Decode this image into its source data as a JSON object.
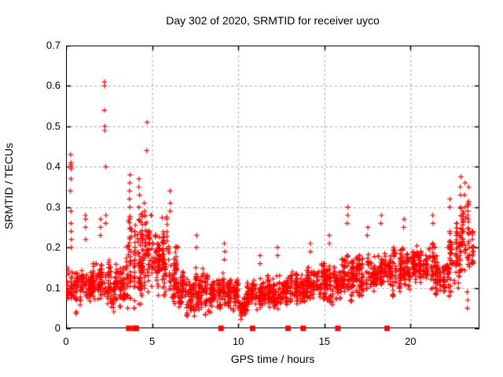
{
  "chart_data": {
    "type": "scatter",
    "title": "Day 302 of 2020, SRMTID for receiver uyco",
    "xlabel": "GPS time / hours",
    "ylabel": "SRMTID / TECUs",
    "xlim": [
      0,
      24
    ],
    "ylim": [
      0,
      0.7
    ],
    "xticks": [
      0,
      5,
      10,
      15,
      20
    ],
    "yticks": [
      0,
      0.1,
      0.2,
      0.3,
      0.4,
      0.5,
      0.6,
      0.7
    ],
    "xtick_labels": [
      "0",
      "5",
      "10",
      "15",
      "20"
    ],
    "ytick_labels": [
      "0",
      "0.1",
      "0.2",
      "0.3",
      "0.4",
      "0.5",
      "0.6",
      "0.7"
    ],
    "grid": true,
    "grid_style": "dashed",
    "grid_color": "#a8a8a8",
    "marker": {
      "shape": "plus",
      "color": "#ff0000",
      "size": 7
    },
    "baseline_square_marker": {
      "shape": "filled-square",
      "color": "#ff0000",
      "size": 7,
      "y": 0
    },
    "baseline_squares_x": [
      3.64,
      3.97,
      4.08,
      9.0,
      10.83,
      12.89,
      13.77,
      15.78,
      18.64
    ],
    "seed": 20201302,
    "density_bins_note": "each bin = [hour_start, hour_end, n_points, y_low, y_high] of the dense measurement band",
    "density_bins": [
      [
        0.0,
        0.5,
        42,
        0.06,
        0.17
      ],
      [
        0.5,
        1.0,
        50,
        0.05,
        0.15
      ],
      [
        1.0,
        1.5,
        55,
        0.06,
        0.16
      ],
      [
        1.5,
        2.0,
        50,
        0.06,
        0.16
      ],
      [
        2.0,
        2.5,
        55,
        0.06,
        0.18
      ],
      [
        2.5,
        3.0,
        50,
        0.05,
        0.16
      ],
      [
        3.0,
        3.5,
        55,
        0.06,
        0.16
      ],
      [
        3.5,
        4.0,
        70,
        0.07,
        0.28
      ],
      [
        4.0,
        4.5,
        75,
        0.08,
        0.3
      ],
      [
        4.5,
        5.0,
        60,
        0.07,
        0.28
      ],
      [
        5.0,
        5.5,
        60,
        0.09,
        0.24
      ],
      [
        5.5,
        6.0,
        65,
        0.1,
        0.28
      ],
      [
        6.0,
        6.5,
        60,
        0.08,
        0.25
      ],
      [
        6.5,
        7.0,
        55,
        0.05,
        0.14
      ],
      [
        7.0,
        7.5,
        60,
        0.04,
        0.13
      ],
      [
        7.5,
        8.0,
        60,
        0.05,
        0.15
      ],
      [
        8.0,
        8.5,
        55,
        0.04,
        0.13
      ],
      [
        8.5,
        9.0,
        55,
        0.05,
        0.14
      ],
      [
        9.0,
        9.5,
        55,
        0.05,
        0.16
      ],
      [
        9.5,
        10.0,
        55,
        0.04,
        0.12
      ],
      [
        10.0,
        10.5,
        60,
        0.03,
        0.1
      ],
      [
        10.5,
        11.0,
        55,
        0.04,
        0.12
      ],
      [
        11.0,
        11.5,
        55,
        0.05,
        0.13
      ],
      [
        11.5,
        12.0,
        55,
        0.05,
        0.13
      ],
      [
        12.0,
        12.5,
        55,
        0.05,
        0.13
      ],
      [
        12.5,
        13.0,
        55,
        0.06,
        0.14
      ],
      [
        13.0,
        13.5,
        55,
        0.06,
        0.14
      ],
      [
        13.5,
        14.0,
        55,
        0.06,
        0.15
      ],
      [
        14.0,
        14.5,
        55,
        0.07,
        0.16
      ],
      [
        14.5,
        15.0,
        55,
        0.07,
        0.16
      ],
      [
        15.0,
        15.5,
        55,
        0.07,
        0.17
      ],
      [
        15.5,
        16.0,
        55,
        0.08,
        0.17
      ],
      [
        16.0,
        16.5,
        55,
        0.08,
        0.18
      ],
      [
        16.5,
        17.0,
        55,
        0.08,
        0.18
      ],
      [
        17.0,
        17.5,
        55,
        0.08,
        0.18
      ],
      [
        17.5,
        18.0,
        55,
        0.09,
        0.19
      ],
      [
        18.0,
        18.5,
        55,
        0.08,
        0.18
      ],
      [
        18.5,
        19.0,
        55,
        0.09,
        0.19
      ],
      [
        19.0,
        19.5,
        55,
        0.1,
        0.2
      ],
      [
        19.5,
        20.0,
        60,
        0.1,
        0.21
      ],
      [
        20.0,
        20.5,
        60,
        0.12,
        0.21
      ],
      [
        20.5,
        21.0,
        60,
        0.11,
        0.21
      ],
      [
        21.0,
        21.5,
        55,
        0.09,
        0.21
      ],
      [
        21.5,
        22.0,
        50,
        0.08,
        0.2
      ],
      [
        22.0,
        22.5,
        55,
        0.1,
        0.24
      ],
      [
        22.5,
        23.0,
        60,
        0.12,
        0.3
      ],
      [
        23.0,
        23.5,
        50,
        0.12,
        0.32
      ],
      [
        23.5,
        23.8,
        20,
        0.14,
        0.24
      ]
    ],
    "spike_columns_note": "distinct high/low outlier columns read from the plot: {x hour, y values}",
    "spike_columns": [
      {
        "x": 0.27,
        "ys": [
          0.34,
          0.37,
          0.395,
          0.4,
          0.405,
          0.41,
          0.43
        ]
      },
      {
        "x": 0.3,
        "ys": [
          0.2,
          0.22,
          0.24,
          0.26,
          0.29
        ]
      },
      {
        "x": 1.15,
        "ys": [
          0.22,
          0.25,
          0.27,
          0.28
        ]
      },
      {
        "x": 2.0,
        "ys": [
          0.23,
          0.25,
          0.27
        ]
      },
      {
        "x": 2.25,
        "ys": [
          0.49,
          0.5,
          0.54,
          0.6,
          0.61
        ]
      },
      {
        "x": 2.3,
        "ys": [
          0.26,
          0.28,
          0.4
        ]
      },
      {
        "x": 3.7,
        "ys": [
          0.3,
          0.32,
          0.34,
          0.36,
          0.38
        ]
      },
      {
        "x": 4.25,
        "ys": [
          0.3,
          0.33,
          0.35,
          0.37
        ]
      },
      {
        "x": 4.55,
        "ys": [
          0.29,
          0.31
        ]
      },
      {
        "x": 4.7,
        "ys": [
          0.44,
          0.51
        ]
      },
      {
        "x": 6.05,
        "ys": [
          0.29,
          0.31,
          0.34
        ]
      },
      {
        "x": 7.6,
        "ys": [
          0.2,
          0.23
        ]
      },
      {
        "x": 9.2,
        "ys": [
          0.17,
          0.19,
          0.21
        ]
      },
      {
        "x": 11.25,
        "ys": [
          0.16,
          0.18
        ]
      },
      {
        "x": 12.3,
        "ys": [
          0.18,
          0.2
        ]
      },
      {
        "x": 14.2,
        "ys": [
          0.19,
          0.21
        ]
      },
      {
        "x": 15.3,
        "ys": [
          0.21,
          0.23
        ]
      },
      {
        "x": 16.35,
        "ys": [
          0.26,
          0.28,
          0.3
        ]
      },
      {
        "x": 17.5,
        "ys": [
          0.23,
          0.25
        ]
      },
      {
        "x": 18.3,
        "ys": [
          0.26,
          0.28
        ]
      },
      {
        "x": 19.6,
        "ys": [
          0.25,
          0.27
        ]
      },
      {
        "x": 21.3,
        "ys": [
          0.26,
          0.28
        ]
      },
      {
        "x": 22.3,
        "ys": [
          0.3,
          0.32
        ]
      },
      {
        "x": 22.9,
        "ys": [
          0.33,
          0.35,
          0.375
        ]
      },
      {
        "x": 23.15,
        "ys": [
          0.3,
          0.33,
          0.36
        ]
      },
      {
        "x": 23.3,
        "ys": [
          0.05,
          0.07,
          0.09
        ]
      },
      {
        "x": 23.35,
        "ys": [
          0.28,
          0.31,
          0.35
        ]
      }
    ]
  }
}
